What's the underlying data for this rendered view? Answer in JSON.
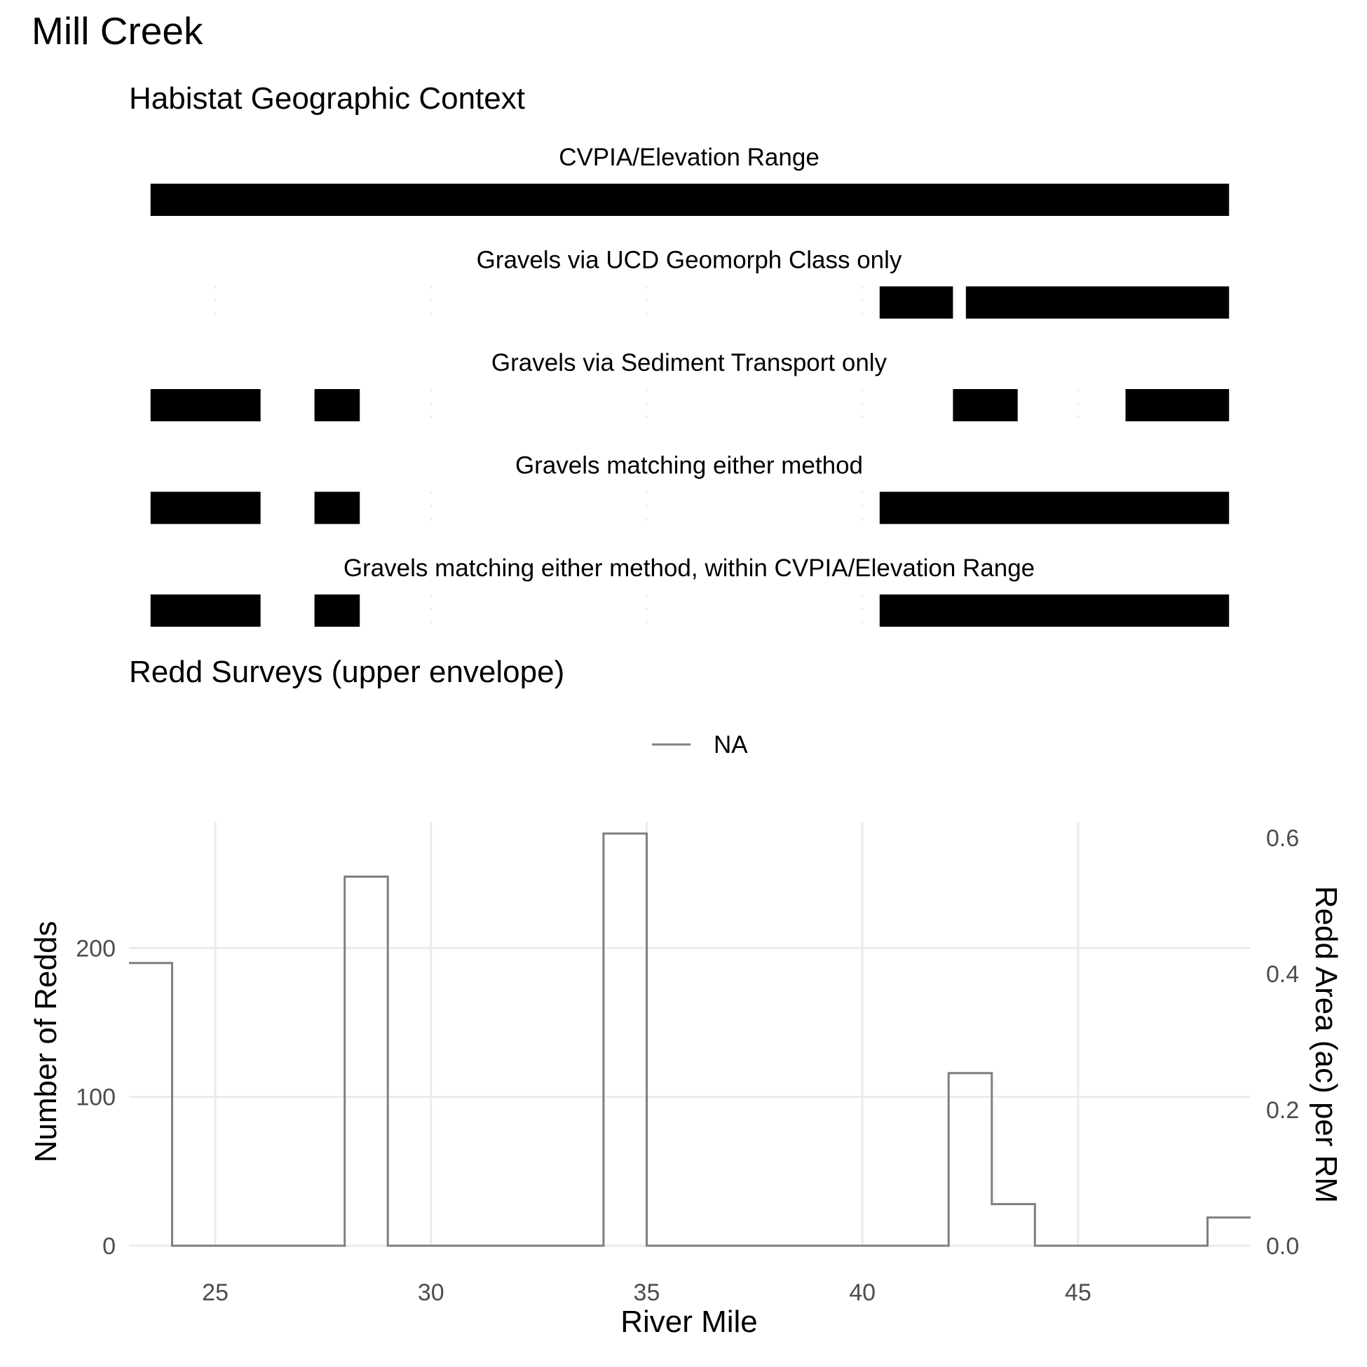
{
  "figure": {
    "title": "Mill Creek",
    "context_subtitle": "Habistat Geographic Context",
    "redd_subtitle": "Redd Surveys (upper envelope)"
  },
  "chart_data": [
    {
      "type": "bar",
      "title": "Habistat Geographic Context",
      "x_range": [
        23,
        49
      ],
      "gridlines_x": [
        25,
        30,
        35,
        40,
        45
      ],
      "grid": true,
      "facets": [
        {
          "label": "CVPIA/Elevation Range",
          "segments": [
            [
              23.5,
              48.5
            ]
          ]
        },
        {
          "label": "Gravels via UCD Geomorph Class only",
          "segments": [
            [
              40.4,
              42.1
            ],
            [
              42.4,
              48.5
            ]
          ]
        },
        {
          "label": "Gravels via Sediment Transport only",
          "segments": [
            [
              23.5,
              26.05
            ],
            [
              27.3,
              28.35
            ],
            [
              42.1,
              43.6
            ],
            [
              46.1,
              48.5
            ]
          ]
        },
        {
          "label": "Gravels matching either method",
          "segments": [
            [
              23.5,
              26.05
            ],
            [
              27.3,
              28.35
            ],
            [
              40.4,
              48.5
            ]
          ]
        },
        {
          "label": "Gravels matching either method, within CVPIA/Elevation Range",
          "segments": [
            [
              23.5,
              26.05
            ],
            [
              27.3,
              28.35
            ],
            [
              40.4,
              48.5
            ]
          ]
        }
      ]
    },
    {
      "type": "line",
      "title": "Redd Surveys (upper envelope)",
      "xlabel": "River Mile",
      "ylabel": "Number of Redds",
      "y2label": "Redd Area (ac) per RM",
      "xlim": [
        23,
        49
      ],
      "ylim": [
        0,
        285
      ],
      "y2lim": [
        0,
        0.6
      ],
      "x_ticks": [
        25,
        30,
        35,
        40,
        45
      ],
      "y_ticks": [
        0,
        100,
        200
      ],
      "y2_ticks": [
        "0.0",
        "0.2",
        "0.4",
        "0.6"
      ],
      "legend": {
        "position": "top",
        "entries": [
          "NA"
        ]
      },
      "grid": true,
      "series": [
        {
          "step": "pre",
          "color": "#7f7f7f",
          "points": [
            [
              23,
              190
            ],
            [
              24,
              190
            ],
            [
              24,
              0
            ],
            [
              28,
              0
            ],
            [
              28,
              248
            ],
            [
              29,
              248
            ],
            [
              29,
              0
            ],
            [
              34,
              0
            ],
            [
              34,
              277
            ],
            [
              35,
              277
            ],
            [
              35,
              0
            ],
            [
              42,
              0
            ],
            [
              42,
              116
            ],
            [
              43,
              116
            ],
            [
              43,
              28
            ],
            [
              44,
              28
            ],
            [
              44,
              0
            ],
            [
              48,
              0
            ],
            [
              48,
              19
            ],
            [
              49,
              19
            ]
          ]
        }
      ]
    }
  ]
}
